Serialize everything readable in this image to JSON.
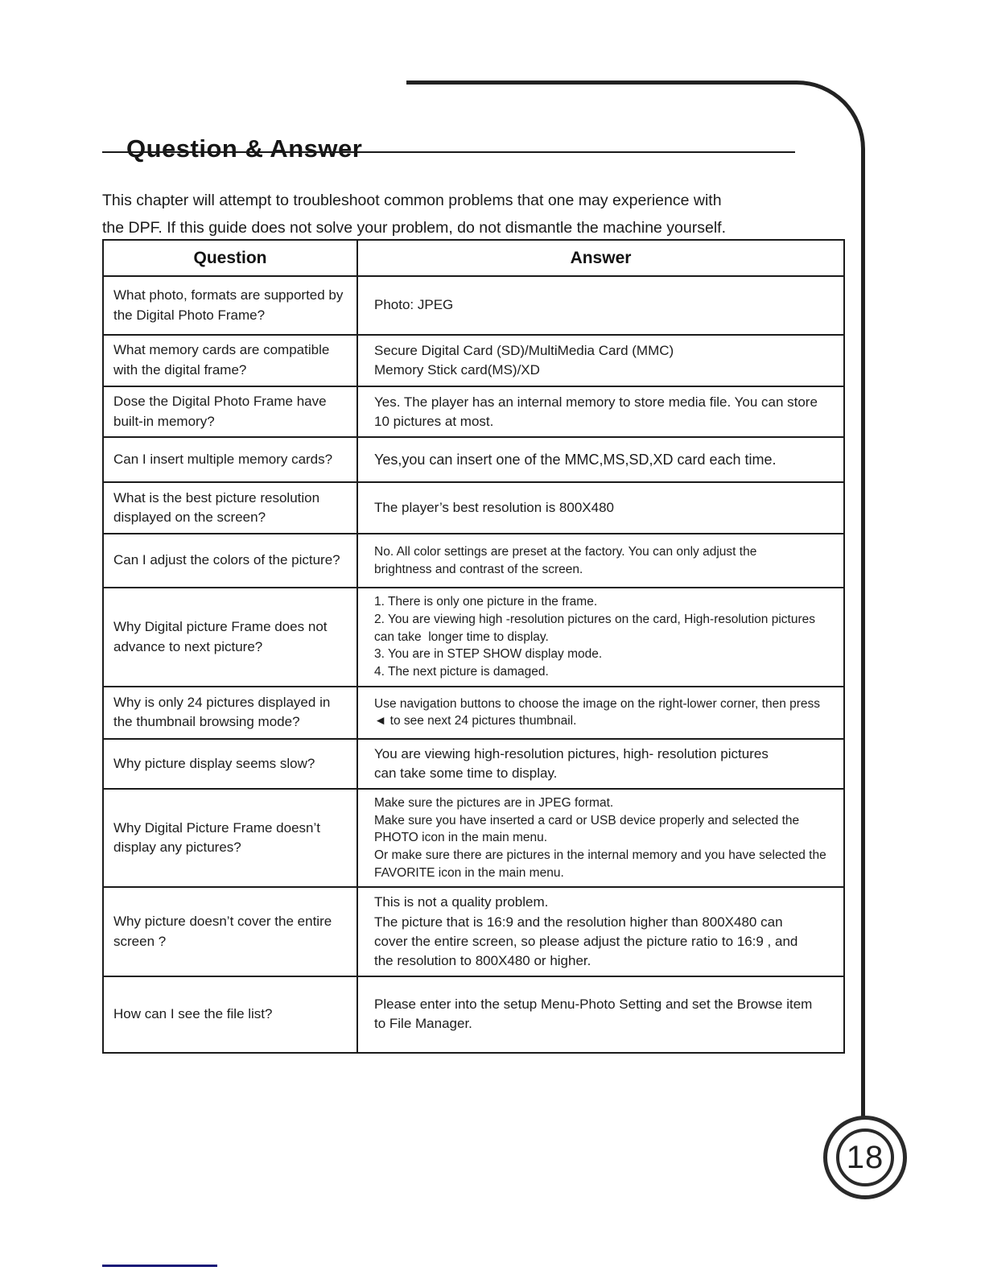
{
  "page": {
    "title": "Question & Answer",
    "intro": "This chapter will attempt to troubleshoot common problems that one may experience with\nthe DPF. If this guide does not solve your problem, do not dismantle the machine yourself.",
    "page_number": "18"
  },
  "table": {
    "question_header": "Question",
    "answer_header": "Answer",
    "rows": [
      {
        "question": "What photo, formats are supported by the Digital Photo Frame?",
        "answer": "Photo: JPEG"
      },
      {
        "question": "What memory cards are compatible with the digital frame?",
        "answer": "Secure Digital Card (SD)/MultiMedia Card (MMC)\nMemory Stick card(MS)/XD"
      },
      {
        "question": "Dose the Digital Photo Frame have built-in memory?",
        "answer": "Yes. The player has an internal memory to store media file. You can store\n10 pictures at most."
      },
      {
        "question": "Can I insert multiple memory cards?",
        "answer": "Yes,you can insert one of the MMC,MS,SD,XD card each time."
      },
      {
        "question": "What is the best picture resolution displayed on the screen?",
        "answer": "The player’s best resolution is 800X480"
      },
      {
        "question": "Can I adjust the colors of the picture?",
        "answer": "No. All color settings are preset at the factory. You can only adjust the\nbrightness and contrast of the screen."
      },
      {
        "question": "Why Digital picture Frame does not advance to next picture?",
        "answer": "1. There is only one picture in the frame.\n2. You are viewing high -resolution pictures on the card, High-resolution pictures can take  longer time to display.\n3. You are in STEP SHOW display mode.\n4. The next picture is damaged."
      },
      {
        "question": "Why is only 24 pictures displayed in the thumbnail browsing mode?",
        "answer": "Use navigation buttons to choose the image on the right-lower corner, then press\n◄ to see next 24 pictures thumbnail."
      },
      {
        "question": "Why picture display seems slow?",
        "answer": "You are viewing high-resolution pictures, high- resolution pictures\ncan take some time to display."
      },
      {
        "question": "Why Digital Picture Frame doesn’t display any pictures?",
        "answer": "Make sure the pictures are in JPEG format.\nMake sure you have inserted a card or USB device properly and selected the PHOTO icon in the main menu.\nOr make sure there are pictures in the internal memory and you have selected the FAVORITE icon in the main menu."
      },
      {
        "question": "Why picture doesn’t cover the entire screen ?",
        "answer": "This is not a quality problem.\nThe picture that is 16:9 and the resolution higher than 800X480 can\ncover the entire screen, so please adjust the picture ratio to 16:9 , and\nthe resolution to 800X480 or higher."
      },
      {
        "question": "How can I see the file list?",
        "answer": "Please enter into the setup Menu-Photo Setting and set the Browse item\nto File Manager."
      }
    ]
  }
}
